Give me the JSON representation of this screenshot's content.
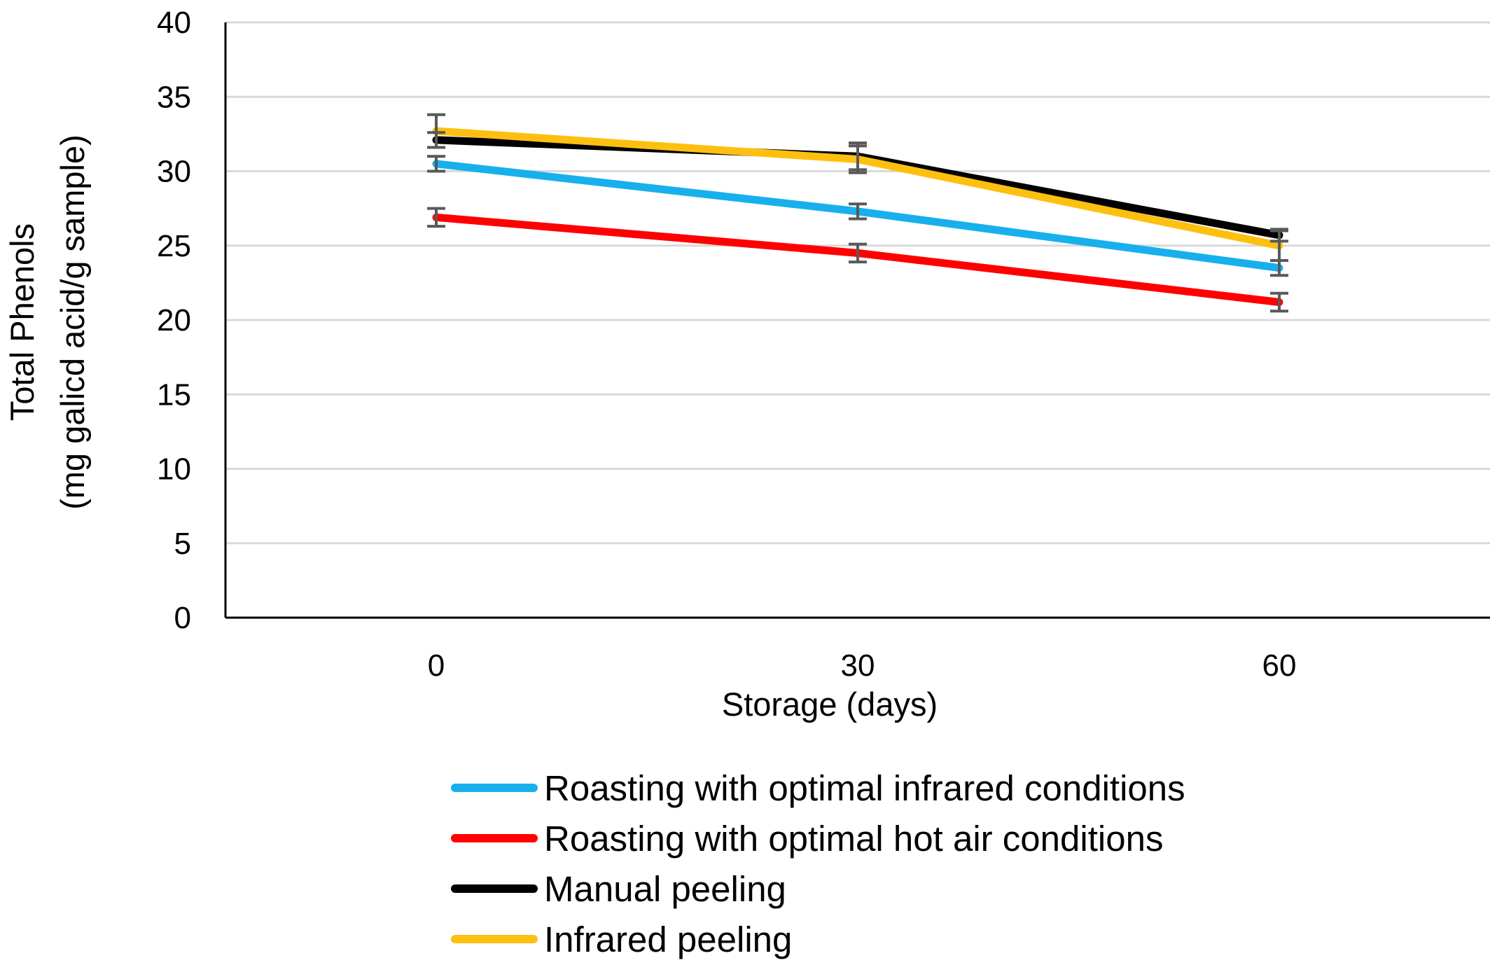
{
  "chart_data": {
    "type": "line",
    "title": "",
    "xlabel": "Storage (days)",
    "ylabel_line1": "Total Phenols",
    "ylabel_line2": "(mg galicd acid/g sample)",
    "categories": [
      "0",
      "30",
      "60"
    ],
    "ylim": [
      0,
      40
    ],
    "yticks": [
      0,
      5,
      10,
      15,
      20,
      25,
      30,
      35,
      40
    ],
    "grid": true,
    "legend_position": "bottom",
    "error_bar_color": "#595959",
    "series": [
      {
        "name": "Roasting with optimal infrared conditions",
        "color": "#17B0EC",
        "values": [
          30.5,
          27.3,
          23.5
        ],
        "errors": [
          0.5,
          0.5,
          0.5
        ]
      },
      {
        "name": "Roasting with optimal hot air conditions",
        "color": "#FF0000",
        "values": [
          26.9,
          24.5,
          21.2
        ],
        "errors": [
          0.6,
          0.6,
          0.6
        ]
      },
      {
        "name": "Manual peeling",
        "color": "#000000",
        "values": [
          32.1,
          31.0,
          25.7
        ],
        "errors": [
          0.5,
          0.9,
          0.4
        ]
      },
      {
        "name": "Infrared peeling",
        "color": "#FDC010",
        "values": [
          32.7,
          30.8,
          25.0
        ],
        "errors": [
          1.1,
          0.9,
          1.0
        ]
      }
    ]
  }
}
